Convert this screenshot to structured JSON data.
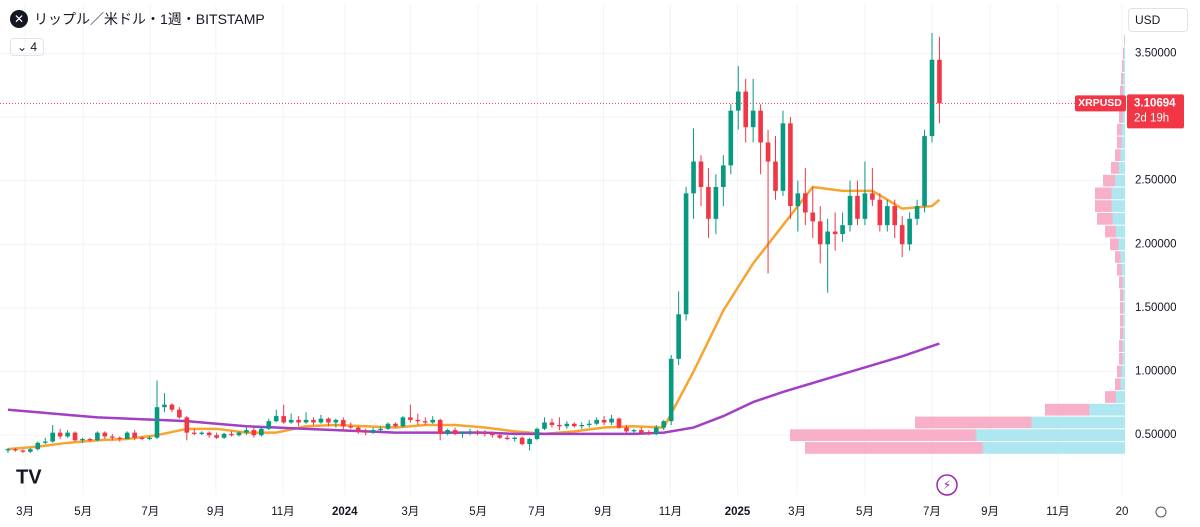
{
  "chart_data": {
    "type": "candlestick",
    "title": "リップル／米ドル・1週・BITSTAMP",
    "indicator_count": "4",
    "currency": "USD",
    "symbol": "XRPUSD",
    "last_price": 3.10694,
    "countdown": "2d 19h",
    "up_color": "#089981",
    "down_color": "#f23645",
    "grid": true,
    "ylim": [
      0.03,
      3.88
    ],
    "yticks": [
      {
        "value": 0.5,
        "label": "0.50000"
      },
      {
        "value": 1.0,
        "label": "1.00000"
      },
      {
        "value": 1.5,
        "label": "1.50000"
      },
      {
        "value": 2.0,
        "label": "2.00000"
      },
      {
        "value": 2.5,
        "label": "2.50000"
      },
      {
        "value": 3.0,
        "label": "3.00000"
      },
      {
        "value": 3.5,
        "label": "3.50000"
      }
    ],
    "xlim": [
      -1.07,
      149.9
    ],
    "xticks": [
      {
        "value": 2.3,
        "label": "3月"
      },
      {
        "value": 10.1,
        "label": "5月"
      },
      {
        "value": 19.1,
        "label": "7月"
      },
      {
        "value": 27.9,
        "label": "9月"
      },
      {
        "value": 36.9,
        "label": "11月"
      },
      {
        "value": 45.2,
        "label": "2024"
      },
      {
        "value": 54,
        "label": "3月"
      },
      {
        "value": 63.1,
        "label": "5月"
      },
      {
        "value": 71,
        "label": "7月"
      },
      {
        "value": 79.9,
        "label": "9月"
      },
      {
        "value": 88.9,
        "label": "11月"
      },
      {
        "value": 97.9,
        "label": "2025"
      },
      {
        "value": 105.9,
        "label": "3月"
      },
      {
        "value": 115,
        "label": "5月"
      },
      {
        "value": 124,
        "label": "7月"
      },
      {
        "value": 131.8,
        "label": "9月"
      },
      {
        "value": 140.9,
        "label": "11月"
      },
      {
        "value": 149.5,
        "label": "20"
      }
    ],
    "candles": [
      [
        0.38,
        0.4,
        0.36,
        0.39
      ],
      [
        0.39,
        0.4,
        0.37,
        0.38
      ],
      [
        0.38,
        0.39,
        0.36,
        0.37
      ],
      [
        0.37,
        0.4,
        0.36,
        0.39
      ],
      [
        0.39,
        0.45,
        0.38,
        0.44
      ],
      [
        0.44,
        0.48,
        0.43,
        0.45
      ],
      [
        0.45,
        0.58,
        0.44,
        0.52
      ],
      [
        0.52,
        0.55,
        0.47,
        0.49
      ],
      [
        0.49,
        0.54,
        0.48,
        0.52
      ],
      [
        0.52,
        0.53,
        0.45,
        0.46
      ],
      [
        0.46,
        0.48,
        0.44,
        0.47
      ],
      [
        0.47,
        0.48,
        0.45,
        0.46
      ],
      [
        0.46,
        0.53,
        0.45,
        0.52
      ],
      [
        0.52,
        0.53,
        0.47,
        0.49
      ],
      [
        0.49,
        0.51,
        0.46,
        0.48
      ],
      [
        0.48,
        0.49,
        0.45,
        0.47
      ],
      [
        0.47,
        0.53,
        0.47,
        0.52
      ],
      [
        0.52,
        0.54,
        0.46,
        0.48
      ],
      [
        0.48,
        0.49,
        0.46,
        0.47
      ],
      [
        0.47,
        0.49,
        0.46,
        0.48
      ],
      [
        0.48,
        0.93,
        0.47,
        0.72
      ],
      [
        0.72,
        0.83,
        0.68,
        0.74
      ],
      [
        0.74,
        0.75,
        0.68,
        0.7
      ],
      [
        0.7,
        0.72,
        0.63,
        0.64
      ],
      [
        0.64,
        0.65,
        0.46,
        0.52
      ],
      [
        0.52,
        0.55,
        0.5,
        0.51
      ],
      [
        0.51,
        0.53,
        0.5,
        0.52
      ],
      [
        0.52,
        0.53,
        0.48,
        0.5
      ],
      [
        0.5,
        0.52,
        0.47,
        0.48
      ],
      [
        0.48,
        0.52,
        0.47,
        0.51
      ],
      [
        0.51,
        0.53,
        0.49,
        0.5
      ],
      [
        0.5,
        0.53,
        0.49,
        0.52
      ],
      [
        0.52,
        0.56,
        0.5,
        0.54
      ],
      [
        0.54,
        0.56,
        0.48,
        0.5
      ],
      [
        0.5,
        0.56,
        0.49,
        0.55
      ],
      [
        0.55,
        0.63,
        0.54,
        0.61
      ],
      [
        0.61,
        0.7,
        0.6,
        0.65
      ],
      [
        0.65,
        0.74,
        0.59,
        0.6
      ],
      [
        0.6,
        0.67,
        0.59,
        0.62
      ],
      [
        0.62,
        0.65,
        0.57,
        0.6
      ],
      [
        0.6,
        0.68,
        0.59,
        0.62
      ],
      [
        0.62,
        0.64,
        0.58,
        0.6
      ],
      [
        0.6,
        0.66,
        0.59,
        0.63
      ],
      [
        0.63,
        0.64,
        0.57,
        0.6
      ],
      [
        0.6,
        0.63,
        0.56,
        0.62
      ],
      [
        0.62,
        0.64,
        0.53,
        0.57
      ],
      [
        0.57,
        0.6,
        0.55,
        0.56
      ],
      [
        0.56,
        0.57,
        0.51,
        0.53
      ],
      [
        0.53,
        0.55,
        0.5,
        0.52
      ],
      [
        0.52,
        0.56,
        0.51,
        0.54
      ],
      [
        0.54,
        0.57,
        0.53,
        0.55
      ],
      [
        0.55,
        0.6,
        0.54,
        0.59
      ],
      [
        0.59,
        0.6,
        0.56,
        0.57
      ],
      [
        0.57,
        0.65,
        0.56,
        0.64
      ],
      [
        0.64,
        0.74,
        0.6,
        0.62
      ],
      [
        0.62,
        0.67,
        0.58,
        0.61
      ],
      [
        0.61,
        0.64,
        0.58,
        0.6
      ],
      [
        0.6,
        0.65,
        0.59,
        0.62
      ],
      [
        0.62,
        0.63,
        0.46,
        0.51
      ],
      [
        0.51,
        0.55,
        0.5,
        0.54
      ],
      [
        0.54,
        0.56,
        0.5,
        0.51
      ],
      [
        0.51,
        0.53,
        0.48,
        0.52
      ],
      [
        0.52,
        0.55,
        0.5,
        0.53
      ],
      [
        0.53,
        0.54,
        0.5,
        0.52
      ],
      [
        0.52,
        0.54,
        0.49,
        0.51
      ],
      [
        0.51,
        0.53,
        0.48,
        0.5
      ],
      [
        0.5,
        0.51,
        0.47,
        0.48
      ],
      [
        0.48,
        0.5,
        0.46,
        0.47
      ],
      [
        0.47,
        0.49,
        0.45,
        0.48
      ],
      [
        0.48,
        0.49,
        0.42,
        0.43
      ],
      [
        0.43,
        0.48,
        0.38,
        0.47
      ],
      [
        0.47,
        0.56,
        0.46,
        0.55
      ],
      [
        0.55,
        0.64,
        0.54,
        0.6
      ],
      [
        0.6,
        0.63,
        0.56,
        0.58
      ],
      [
        0.58,
        0.64,
        0.54,
        0.57
      ],
      [
        0.57,
        0.61,
        0.55,
        0.59
      ],
      [
        0.59,
        0.6,
        0.56,
        0.57
      ],
      [
        0.57,
        0.6,
        0.55,
        0.58
      ],
      [
        0.58,
        0.62,
        0.56,
        0.59
      ],
      [
        0.59,
        0.64,
        0.58,
        0.62
      ],
      [
        0.62,
        0.65,
        0.58,
        0.6
      ],
      [
        0.6,
        0.66,
        0.58,
        0.63
      ],
      [
        0.63,
        0.64,
        0.55,
        0.56
      ],
      [
        0.56,
        0.58,
        0.52,
        0.53
      ],
      [
        0.53,
        0.55,
        0.51,
        0.54
      ],
      [
        0.54,
        0.56,
        0.51,
        0.52
      ],
      [
        0.52,
        0.54,
        0.5,
        0.51
      ],
      [
        0.51,
        0.58,
        0.5,
        0.56
      ],
      [
        0.56,
        0.62,
        0.54,
        0.61
      ],
      [
        0.61,
        1.13,
        0.58,
        1.1
      ],
      [
        1.1,
        1.63,
        1.05,
        1.45
      ],
      [
        1.45,
        2.45,
        1.4,
        2.4
      ],
      [
        2.4,
        2.91,
        2.2,
        2.65
      ],
      [
        2.65,
        2.7,
        2.3,
        2.45
      ],
      [
        2.45,
        2.6,
        2.05,
        2.2
      ],
      [
        2.2,
        2.55,
        2.08,
        2.45
      ],
      [
        2.45,
        2.7,
        2.3,
        2.62
      ],
      [
        2.62,
        3.1,
        2.55,
        3.05
      ],
      [
        3.05,
        3.4,
        2.9,
        3.2
      ],
      [
        3.2,
        3.3,
        2.8,
        2.92
      ],
      [
        2.92,
        3.3,
        2.8,
        3.05
      ],
      [
        3.05,
        3.1,
        2.55,
        2.8
      ],
      [
        2.8,
        2.9,
        1.77,
        2.65
      ],
      [
        2.65,
        2.85,
        2.35,
        2.42
      ],
      [
        2.42,
        3.05,
        2.38,
        2.95
      ],
      [
        2.95,
        3.0,
        2.2,
        2.3
      ],
      [
        2.3,
        2.5,
        2.1,
        2.4
      ],
      [
        2.4,
        2.6,
        2.15,
        2.25
      ],
      [
        2.25,
        2.45,
        2.05,
        2.18
      ],
      [
        2.18,
        2.3,
        1.85,
        2.0
      ],
      [
        2.0,
        2.2,
        1.62,
        2.1
      ],
      [
        2.1,
        2.25,
        1.95,
        2.08
      ],
      [
        2.08,
        2.25,
        2.02,
        2.15
      ],
      [
        2.15,
        2.5,
        2.1,
        2.38
      ],
      [
        2.38,
        2.5,
        2.15,
        2.2
      ],
      [
        2.2,
        2.65,
        2.15,
        2.4
      ],
      [
        2.4,
        2.6,
        2.3,
        2.35
      ],
      [
        2.35,
        2.4,
        2.1,
        2.15
      ],
      [
        2.15,
        2.35,
        2.1,
        2.3
      ],
      [
        2.3,
        2.35,
        2.05,
        2.15
      ],
      [
        2.15,
        2.22,
        1.9,
        2.0
      ],
      [
        2.0,
        2.25,
        1.95,
        2.2
      ],
      [
        2.2,
        2.35,
        2.15,
        2.3
      ],
      [
        2.3,
        2.9,
        2.25,
        2.85
      ],
      [
        2.85,
        3.66,
        2.8,
        3.45
      ],
      [
        3.45,
        3.63,
        2.95,
        3.10694
      ]
    ],
    "lines": [
      {
        "color": "#f7a531",
        "x": [
          0,
          4,
          8,
          12,
          16,
          20,
          24,
          28,
          32,
          36,
          40,
          44,
          48,
          52,
          56,
          60,
          64,
          68,
          72,
          76,
          80,
          84,
          88,
          92,
          96,
          100,
          104,
          108,
          112,
          116,
          120,
          124,
          125
        ],
        "values": [
          0.39,
          0.41,
          0.44,
          0.46,
          0.47,
          0.5,
          0.55,
          0.55,
          0.52,
          0.52,
          0.57,
          0.58,
          0.57,
          0.56,
          0.58,
          0.58,
          0.56,
          0.53,
          0.51,
          0.53,
          0.56,
          0.57,
          0.56,
          1.0,
          1.48,
          1.85,
          2.15,
          2.45,
          2.42,
          2.42,
          2.28,
          2.3,
          2.35
        ]
      },
      {
        "color": "#a33fc4",
        "x": [
          0,
          4,
          8,
          12,
          16,
          20,
          24,
          28,
          32,
          36,
          40,
          44,
          48,
          52,
          56,
          60,
          64,
          68,
          72,
          76,
          80,
          84,
          88,
          92,
          96,
          100,
          104,
          108,
          112,
          116,
          120,
          124,
          125
        ],
        "values": [
          0.7,
          0.68,
          0.66,
          0.64,
          0.63,
          0.62,
          0.61,
          0.59,
          0.57,
          0.56,
          0.55,
          0.54,
          0.53,
          0.52,
          0.52,
          0.52,
          0.52,
          0.51,
          0.51,
          0.51,
          0.51,
          0.51,
          0.52,
          0.56,
          0.65,
          0.76,
          0.84,
          0.91,
          0.98,
          1.05,
          1.12,
          1.2,
          1.22
        ]
      }
    ],
    "volume_profile": {
      "prices": [
        0.4,
        0.5,
        0.6,
        0.7,
        0.8,
        0.9,
        1.0,
        1.1,
        1.2,
        1.3,
        1.4,
        1.5,
        1.6,
        1.7,
        1.8,
        1.9,
        2.0,
        2.1,
        2.2,
        2.3,
        2.4,
        2.5,
        2.6,
        2.7,
        2.8,
        2.9,
        3.0,
        3.1,
        3.2,
        3.3,
        3.4,
        3.5,
        3.6
      ],
      "values": [
        320,
        335,
        210,
        80,
        20,
        10,
        8,
        6,
        6,
        5,
        5,
        5,
        5,
        6,
        8,
        10,
        15,
        20,
        28,
        30,
        30,
        22,
        14,
        10,
        8,
        8,
        6,
        5,
        5,
        4,
        3,
        2,
        1
      ]
    }
  }
}
